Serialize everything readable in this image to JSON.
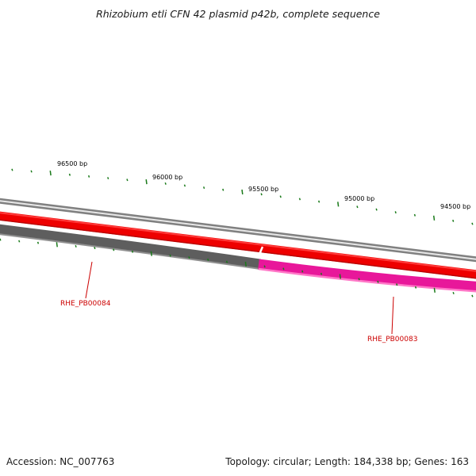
{
  "title": "Rhizobium etli CFN 42 plasmid p42b, complete sequence",
  "footer": {
    "accession": "Accession: NC_007763",
    "summary": "Topology: circular; Length: 184,338 bp; Genes: 163"
  },
  "scale_labels": [
    "96500 bp",
    "96000 bp",
    "95500 bp",
    "95000 bp",
    "94500 bp"
  ],
  "genes": [
    {
      "id": "RHE_PB00084",
      "color": "#cc0000"
    },
    {
      "id": "RHE_PB00083",
      "color": "#cc0000"
    }
  ],
  "colors": {
    "outer_ring": "#808080",
    "forward_gene": "#ee0000",
    "reverse_gene_1": "#606060",
    "reverse_gene_2": "#e8179a",
    "ticks": "#1a7a1a"
  }
}
